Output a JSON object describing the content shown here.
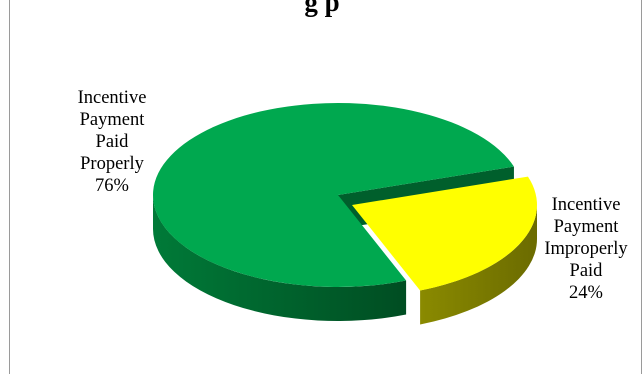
{
  "chart_data": {
    "type": "pie",
    "title": "g                  p",
    "categories": [
      "Incentive Payment Paid Properly",
      "Incentive Payment Improperly Paid"
    ],
    "values": [
      76,
      24
    ],
    "colors": [
      "#00A84F",
      "#FFFF00"
    ],
    "side_colors": [
      "#007a38",
      "#8a8a00"
    ],
    "labels": [
      [
        "Incentive",
        "Payment",
        "Paid",
        "Properly",
        "76%"
      ],
      [
        "Incentive",
        "Payment",
        "Improperly",
        "Paid",
        "24%"
      ]
    ],
    "exploded": "Incentive Payment Improperly Paid",
    "legend": "none",
    "grid": false
  }
}
